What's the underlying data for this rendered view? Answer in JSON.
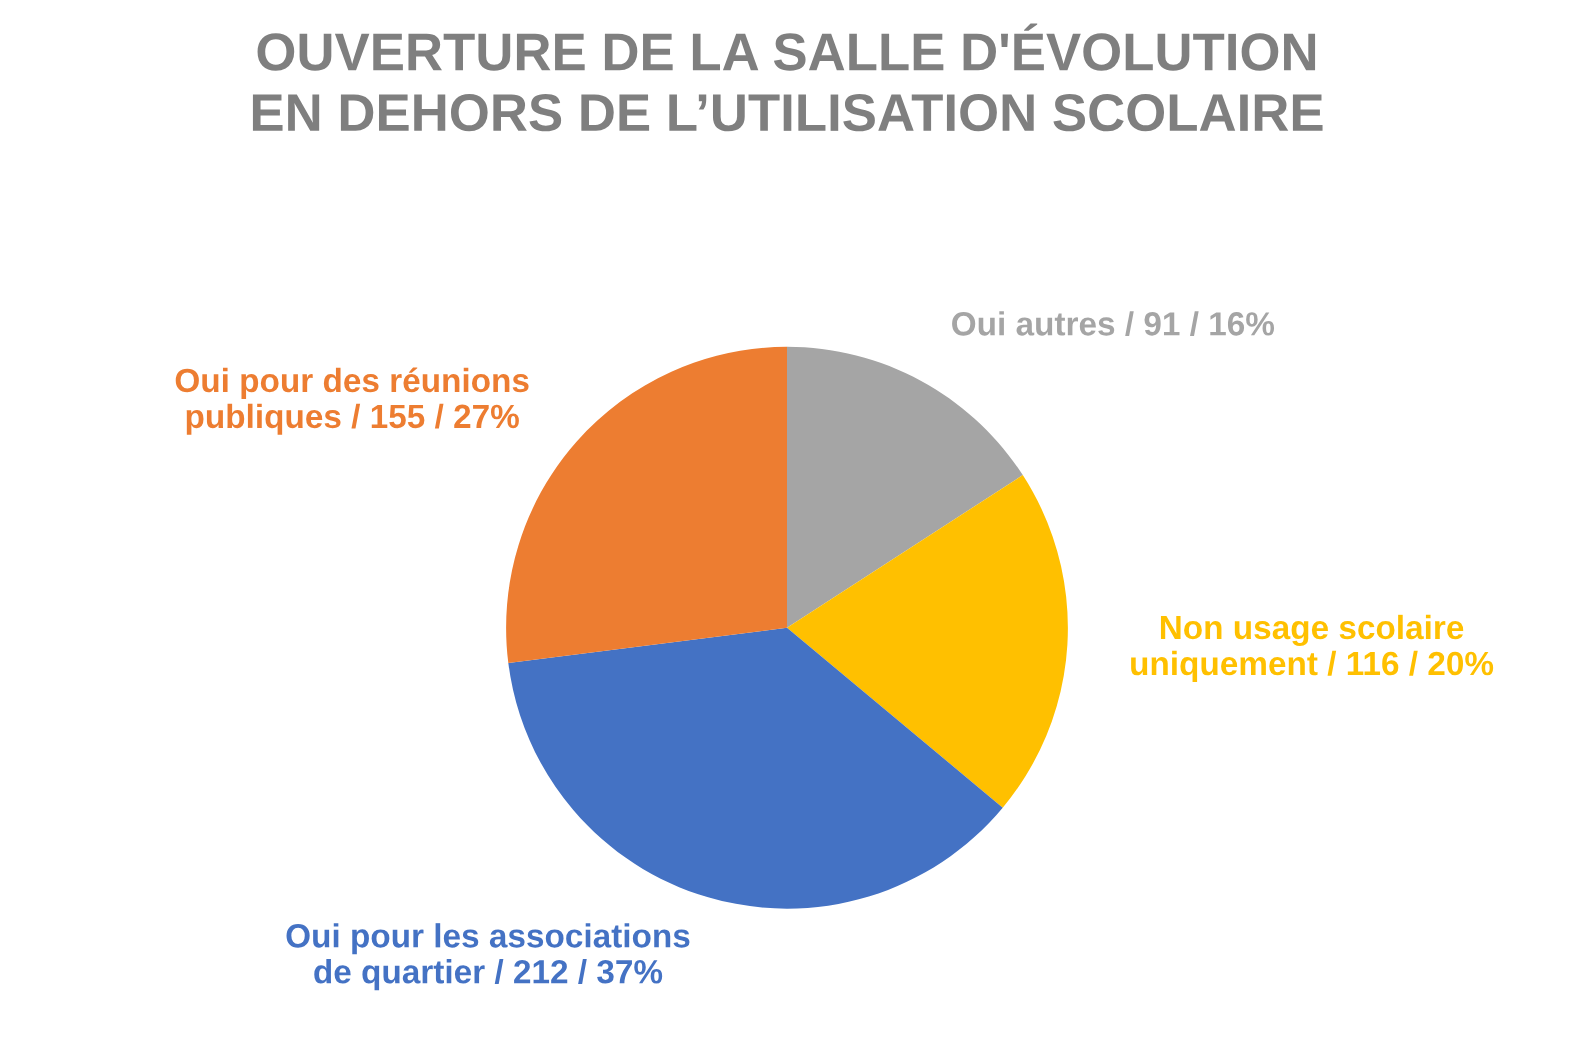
{
  "chart_data": {
    "type": "pie",
    "title": "OUVERTURE DE LA SALLE D'ÉVOLUTION\nEN DEHORS DE L’UTILISATION SCOLAIRE",
    "categories": [
      "Oui autres",
      "Non usage scolaire\nuniquement",
      "Oui pour les associations\nde quartier",
      "Oui pour des réunions\npubliques"
    ],
    "values": [
      91,
      116,
      212,
      155
    ],
    "value_labels": [
      "/ 91 / 16%",
      "/ 116 / 20%",
      "/ 212 / 37%",
      "/ 155 / 27%"
    ],
    "colors": [
      "#a5a5a5",
      "#ffc000",
      "#4472c4",
      "#ed7d31"
    ],
    "legend": false
  }
}
